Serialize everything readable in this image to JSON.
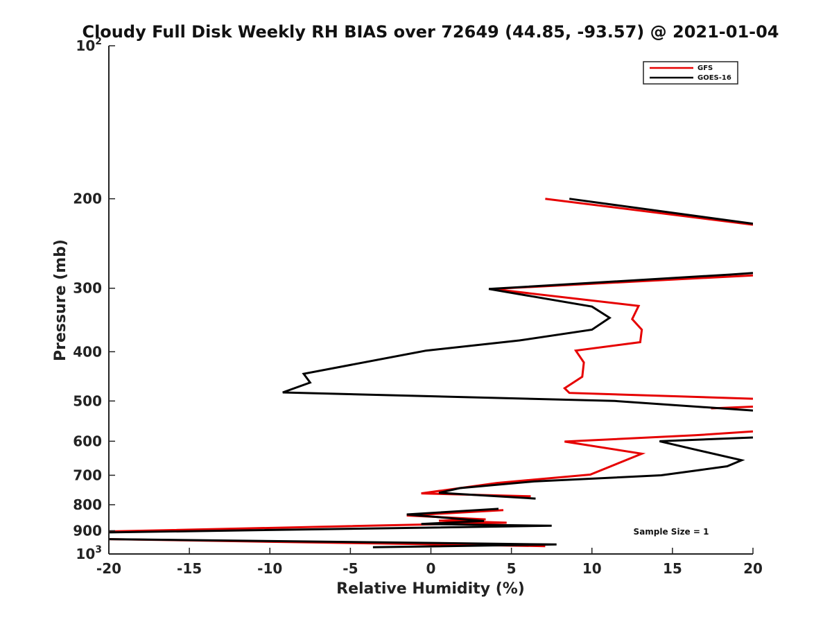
{
  "chart_data": {
    "type": "line",
    "title": "Cloudy Full Disk Weekly RH BIAS over 72649 (44.85, -93.57) @ 2021-01-04",
    "xlabel": "Relative Humidity (%)",
    "ylabel": "Pressure (mb)",
    "xlim": [
      -20,
      20
    ],
    "ylim": [
      100,
      1000
    ],
    "yscale": "log",
    "y_reversed": true,
    "grid": false,
    "legend_position": "top-right",
    "x_ticks": [
      "-20",
      "-15",
      "-10",
      "-5",
      "0",
      "5",
      "10",
      "15",
      "20"
    ],
    "y_ticks": [
      {
        "value": 100,
        "base": "10",
        "exp": "2"
      },
      {
        "value": 200,
        "label": "200"
      },
      {
        "value": 300,
        "label": "300"
      },
      {
        "value": 400,
        "label": "400"
      },
      {
        "value": 500,
        "label": "500"
      },
      {
        "value": 600,
        "label": "600"
      },
      {
        "value": 700,
        "label": "700"
      },
      {
        "value": 800,
        "label": "800"
      },
      {
        "value": 900,
        "label": "900"
      },
      {
        "value": 1000,
        "base": "10",
        "exp": "3"
      }
    ],
    "annotation": "Sample Size = 1",
    "series": [
      {
        "name": "GFS",
        "color": "#e60000",
        "segments": [
          [
            [
              7.1,
              200
            ],
            [
              20,
              225
            ]
          ],
          [
            [
              20,
              283
            ],
            [
              3.8,
              301
            ],
            [
              12.9,
              325
            ],
            [
              12.5,
              345
            ],
            [
              13.1,
              362
            ],
            [
              13.0,
              383
            ],
            [
              9.0,
              398
            ],
            [
              9.5,
              420
            ],
            [
              9.4,
              448
            ],
            [
              8.3,
              472
            ],
            [
              8.6,
              482
            ],
            [
              20,
              495
            ]
          ],
          [
            [
              20,
              513
            ],
            [
              17.4,
              517
            ]
          ],
          [
            [
              20,
              574
            ],
            [
              16.4,
              584
            ],
            [
              8.3,
              601
            ],
            [
              13.1,
              635
            ],
            [
              9.9,
              698
            ],
            [
              4.1,
              725
            ],
            [
              -0.6,
              760
            ],
            [
              6.2,
              770
            ]
          ],
          [
            [
              4.5,
              820
            ],
            [
              -1.5,
              840
            ],
            [
              3.4,
              855
            ],
            [
              0.5,
              860
            ],
            [
              4.7,
              868
            ],
            [
              -20,
              903
            ]
          ],
          [
            [
              -20,
              935
            ],
            [
              7.1,
              965
            ]
          ]
        ]
      },
      {
        "name": "GOES-16",
        "color": "#000000",
        "segments": [
          [
            [
              8.6,
              200
            ],
            [
              20,
              224
            ]
          ],
          [
            [
              20,
              280
            ],
            [
              18.6,
              282
            ],
            [
              3.6,
              301
            ],
            [
              10.0,
              326
            ],
            [
              11.1,
              343
            ],
            [
              10.0,
              362
            ],
            [
              5.5,
              380
            ],
            [
              -0.3,
              398
            ],
            [
              -7.9,
              442
            ],
            [
              -7.5,
              460
            ],
            [
              -9.2,
              481
            ],
            [
              11.4,
              500
            ],
            [
              20,
              522
            ]
          ],
          [
            [
              20,
              590
            ],
            [
              14.2,
              600
            ],
            [
              16.3,
              622
            ],
            [
              19.3,
              654
            ],
            [
              18.4,
              672
            ],
            [
              16.8,
              683
            ],
            [
              14.3,
              700
            ],
            [
              6.4,
              720
            ],
            [
              1.8,
              742
            ],
            [
              0.5,
              758
            ],
            [
              6.5,
              778
            ]
          ],
          [
            [
              4.2,
              815
            ],
            [
              -1.5,
              836
            ],
            [
              3.3,
              861
            ],
            [
              -0.6,
              873
            ],
            [
              7.5,
              880
            ],
            [
              -20,
              907
            ]
          ],
          [
            [
              -20,
              935
            ],
            [
              7.8,
              958
            ],
            [
              -3.6,
              970
            ]
          ]
        ]
      }
    ]
  }
}
